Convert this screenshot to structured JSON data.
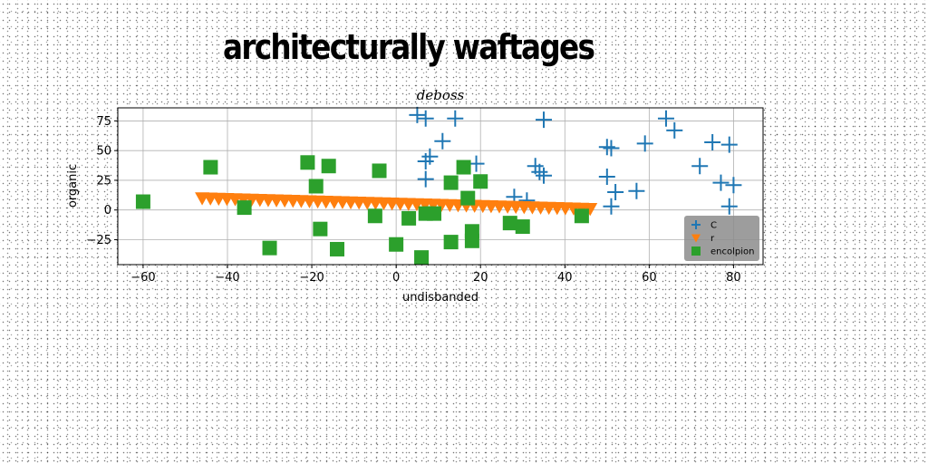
{
  "figure": {
    "suptitle": "architecturally waftages"
  },
  "chart_data": {
    "type": "scatter",
    "title": "deboss",
    "xlabel": "undisbanded",
    "ylabel": "organic",
    "xlim": [
      -66,
      87
    ],
    "ylim": [
      -46,
      86
    ],
    "xticks": [
      -60,
      -40,
      -20,
      0,
      20,
      40,
      60,
      80
    ],
    "yticks": [
      -25,
      0,
      25,
      50,
      75
    ],
    "grid": true,
    "legend_position": "lower-right",
    "series": [
      {
        "name": "C",
        "marker": "plus",
        "color": "#1f77b4",
        "points": [
          [
            5,
            80
          ],
          [
            7,
            77
          ],
          [
            14,
            77
          ],
          [
            35,
            76
          ],
          [
            64,
            77
          ],
          [
            66,
            67
          ],
          [
            11,
            58
          ],
          [
            50,
            53
          ],
          [
            51,
            52
          ],
          [
            59,
            56
          ],
          [
            75,
            57
          ],
          [
            79,
            55
          ],
          [
            8,
            45
          ],
          [
            7,
            41
          ],
          [
            19,
            39
          ],
          [
            33,
            37
          ],
          [
            34,
            32
          ],
          [
            35,
            29
          ],
          [
            50,
            28
          ],
          [
            7,
            26
          ],
          [
            72,
            37
          ],
          [
            77,
            23
          ],
          [
            80,
            21
          ],
          [
            52,
            15
          ],
          [
            57,
            16
          ],
          [
            28,
            11
          ],
          [
            31,
            8
          ],
          [
            51,
            3
          ],
          [
            79,
            3
          ]
        ]
      },
      {
        "name": "r",
        "marker": "triangle-down",
        "color": "#ff7f0e",
        "line_start": [
          -46,
          10
        ],
        "line_end": [
          46,
          1
        ],
        "count": 48
      },
      {
        "name": "encolpion",
        "marker": "square",
        "color": "#2ca02c",
        "points": [
          [
            -60,
            7
          ],
          [
            -44,
            36
          ],
          [
            -36,
            2
          ],
          [
            -30,
            -32
          ],
          [
            -21,
            40
          ],
          [
            -19,
            20
          ],
          [
            -18,
            -16
          ],
          [
            -16,
            37
          ],
          [
            -14,
            -33
          ],
          [
            -4,
            33
          ],
          [
            -5,
            -5
          ],
          [
            0,
            -29
          ],
          [
            3,
            -7
          ],
          [
            6,
            -40
          ],
          [
            7,
            -3
          ],
          [
            9,
            -3
          ],
          [
            13,
            23
          ],
          [
            13,
            -27
          ],
          [
            16,
            36
          ],
          [
            17,
            10
          ],
          [
            18,
            -18
          ],
          [
            18,
            -26
          ],
          [
            20,
            24
          ],
          [
            27,
            -11
          ],
          [
            30,
            -14
          ],
          [
            44,
            -5
          ]
        ]
      }
    ]
  }
}
